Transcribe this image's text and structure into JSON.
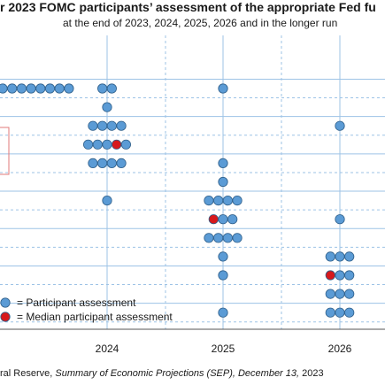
{
  "chart_data": {
    "type": "scatter",
    "title": "r 2023 FOMC participants’ assessment of the appropriate Fed fu",
    "subtitle": "at the end of 2023, 2024, 2025, 2026 and in the longer run",
    "x_ticks": [
      "2024",
      "2025",
      "2026"
    ],
    "grid": true,
    "legend": {
      "placement": "bottom-left",
      "entries": [
        {
          "label": "= Participant assessment",
          "color": "#5b9bd5"
        },
        {
          "label": "= Median participant assessment",
          "color": "#d7191c"
        }
      ]
    },
    "source_prefix": "ral Reserve, ",
    "source_italic": "Summary of Economic Projections (SEP), December 13,",
    "source_suffix": " 2023",
    "colors": {
      "dot": "#5b9bd5",
      "median": "#d7191c",
      "grid": "#9dc3e6",
      "text": "#1a1a1a"
    },
    "columns": [
      {
        "x": "2023",
        "dots": [
          {
            "level": 0,
            "count": 8,
            "median_index": -1
          }
        ]
      },
      {
        "x": "2024",
        "dots": [
          {
            "level": 0,
            "count": 2,
            "median_index": -1
          },
          {
            "level": 1,
            "count": 1,
            "median_index": -1
          },
          {
            "level": 2,
            "count": 4,
            "median_index": -1
          },
          {
            "level": 3,
            "count": 5,
            "median_index": 3
          },
          {
            "level": 4,
            "count": 4,
            "median_index": -1
          },
          {
            "level": 6,
            "count": 1,
            "median_index": -1
          }
        ]
      },
      {
        "x": "2025",
        "dots": [
          {
            "level": 0,
            "count": 1,
            "median_index": -1
          },
          {
            "level": 4,
            "count": 1,
            "median_index": -1
          },
          {
            "level": 5,
            "count": 1,
            "median_index": -1
          },
          {
            "level": 6,
            "count": 4,
            "median_index": -1
          },
          {
            "level": 7,
            "count": 3,
            "median_index": 0
          },
          {
            "level": 8,
            "count": 4,
            "median_index": -1
          },
          {
            "level": 9,
            "count": 1,
            "median_index": -1
          },
          {
            "level": 10,
            "count": 1,
            "median_index": -1
          },
          {
            "level": 12,
            "count": 1,
            "median_index": -1
          }
        ]
      },
      {
        "x": "2026",
        "dots": [
          {
            "level": 2,
            "count": 1,
            "median_index": -1
          },
          {
            "level": 7,
            "count": 1,
            "median_index": -1
          },
          {
            "level": 9,
            "count": 3,
            "median_index": -1
          },
          {
            "level": 10,
            "count": 3,
            "median_index": 0
          },
          {
            "level": 11,
            "count": 3,
            "median_index": -1
          },
          {
            "level": 12,
            "count": 3,
            "median_index": -1
          }
        ]
      }
    ]
  }
}
